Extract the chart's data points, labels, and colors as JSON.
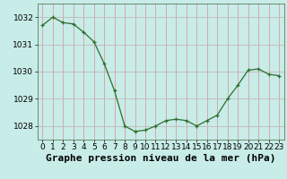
{
  "x": [
    0,
    1,
    2,
    3,
    4,
    5,
    6,
    7,
    8,
    9,
    10,
    11,
    12,
    13,
    14,
    15,
    16,
    17,
    18,
    19,
    20,
    21,
    22,
    23
  ],
  "y": [
    1031.7,
    1032.0,
    1031.8,
    1031.75,
    1031.45,
    1031.1,
    1030.3,
    1029.3,
    1028.0,
    1027.8,
    1027.85,
    1028.0,
    1028.2,
    1028.25,
    1028.2,
    1028.0,
    1028.2,
    1028.4,
    1029.0,
    1029.5,
    1030.05,
    1030.1,
    1029.9,
    1029.85
  ],
  "line_color": "#2d6e2d",
  "marker": "+",
  "bg_color": "#c8ece8",
  "grid_color_v": "#d4a0a0",
  "grid_color_h": "#c0b8b8",
  "xlabel": "Graphe pression niveau de la mer (hPa)",
  "xlabel_fontsize": 8,
  "tick_fontsize": 6.5,
  "ylim": [
    1027.5,
    1032.5
  ],
  "yticks": [
    1028,
    1029,
    1030,
    1031,
    1032
  ],
  "xticks": [
    0,
    1,
    2,
    3,
    4,
    5,
    6,
    7,
    8,
    9,
    10,
    11,
    12,
    13,
    14,
    15,
    16,
    17,
    18,
    19,
    20,
    21,
    22,
    23
  ]
}
